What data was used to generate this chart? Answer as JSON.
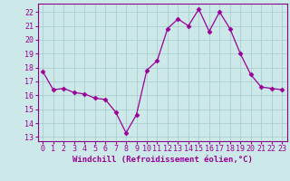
{
  "x": [
    0,
    1,
    2,
    3,
    4,
    5,
    6,
    7,
    8,
    9,
    10,
    11,
    12,
    13,
    14,
    15,
    16,
    17,
    18,
    19,
    20,
    21,
    22,
    23
  ],
  "y": [
    17.7,
    16.4,
    16.5,
    16.2,
    16.1,
    15.8,
    15.7,
    14.8,
    13.3,
    14.6,
    17.8,
    18.5,
    20.8,
    21.5,
    21.0,
    22.2,
    20.6,
    22.0,
    20.8,
    19.0,
    17.5,
    16.6,
    16.5,
    16.4
  ],
  "line_color": "#990099",
  "marker": "D",
  "marker_size": 2.5,
  "bg_color": "#cce8e8",
  "grid_color": "#aacece",
  "ylabel_ticks": [
    13,
    14,
    15,
    16,
    17,
    18,
    19,
    20,
    21,
    22
  ],
  "xlabel_ticks": [
    0,
    1,
    2,
    3,
    4,
    5,
    6,
    7,
    8,
    9,
    10,
    11,
    12,
    13,
    14,
    15,
    16,
    17,
    18,
    19,
    20,
    21,
    22,
    23
  ],
  "ylim": [
    12.7,
    22.6
  ],
  "xlim": [
    -0.5,
    23.5
  ],
  "xlabel": "Windchill (Refroidissement éolien,°C)",
  "xlabel_fontsize": 6.5,
  "tick_fontsize": 6,
  "spine_color": "#880088"
}
